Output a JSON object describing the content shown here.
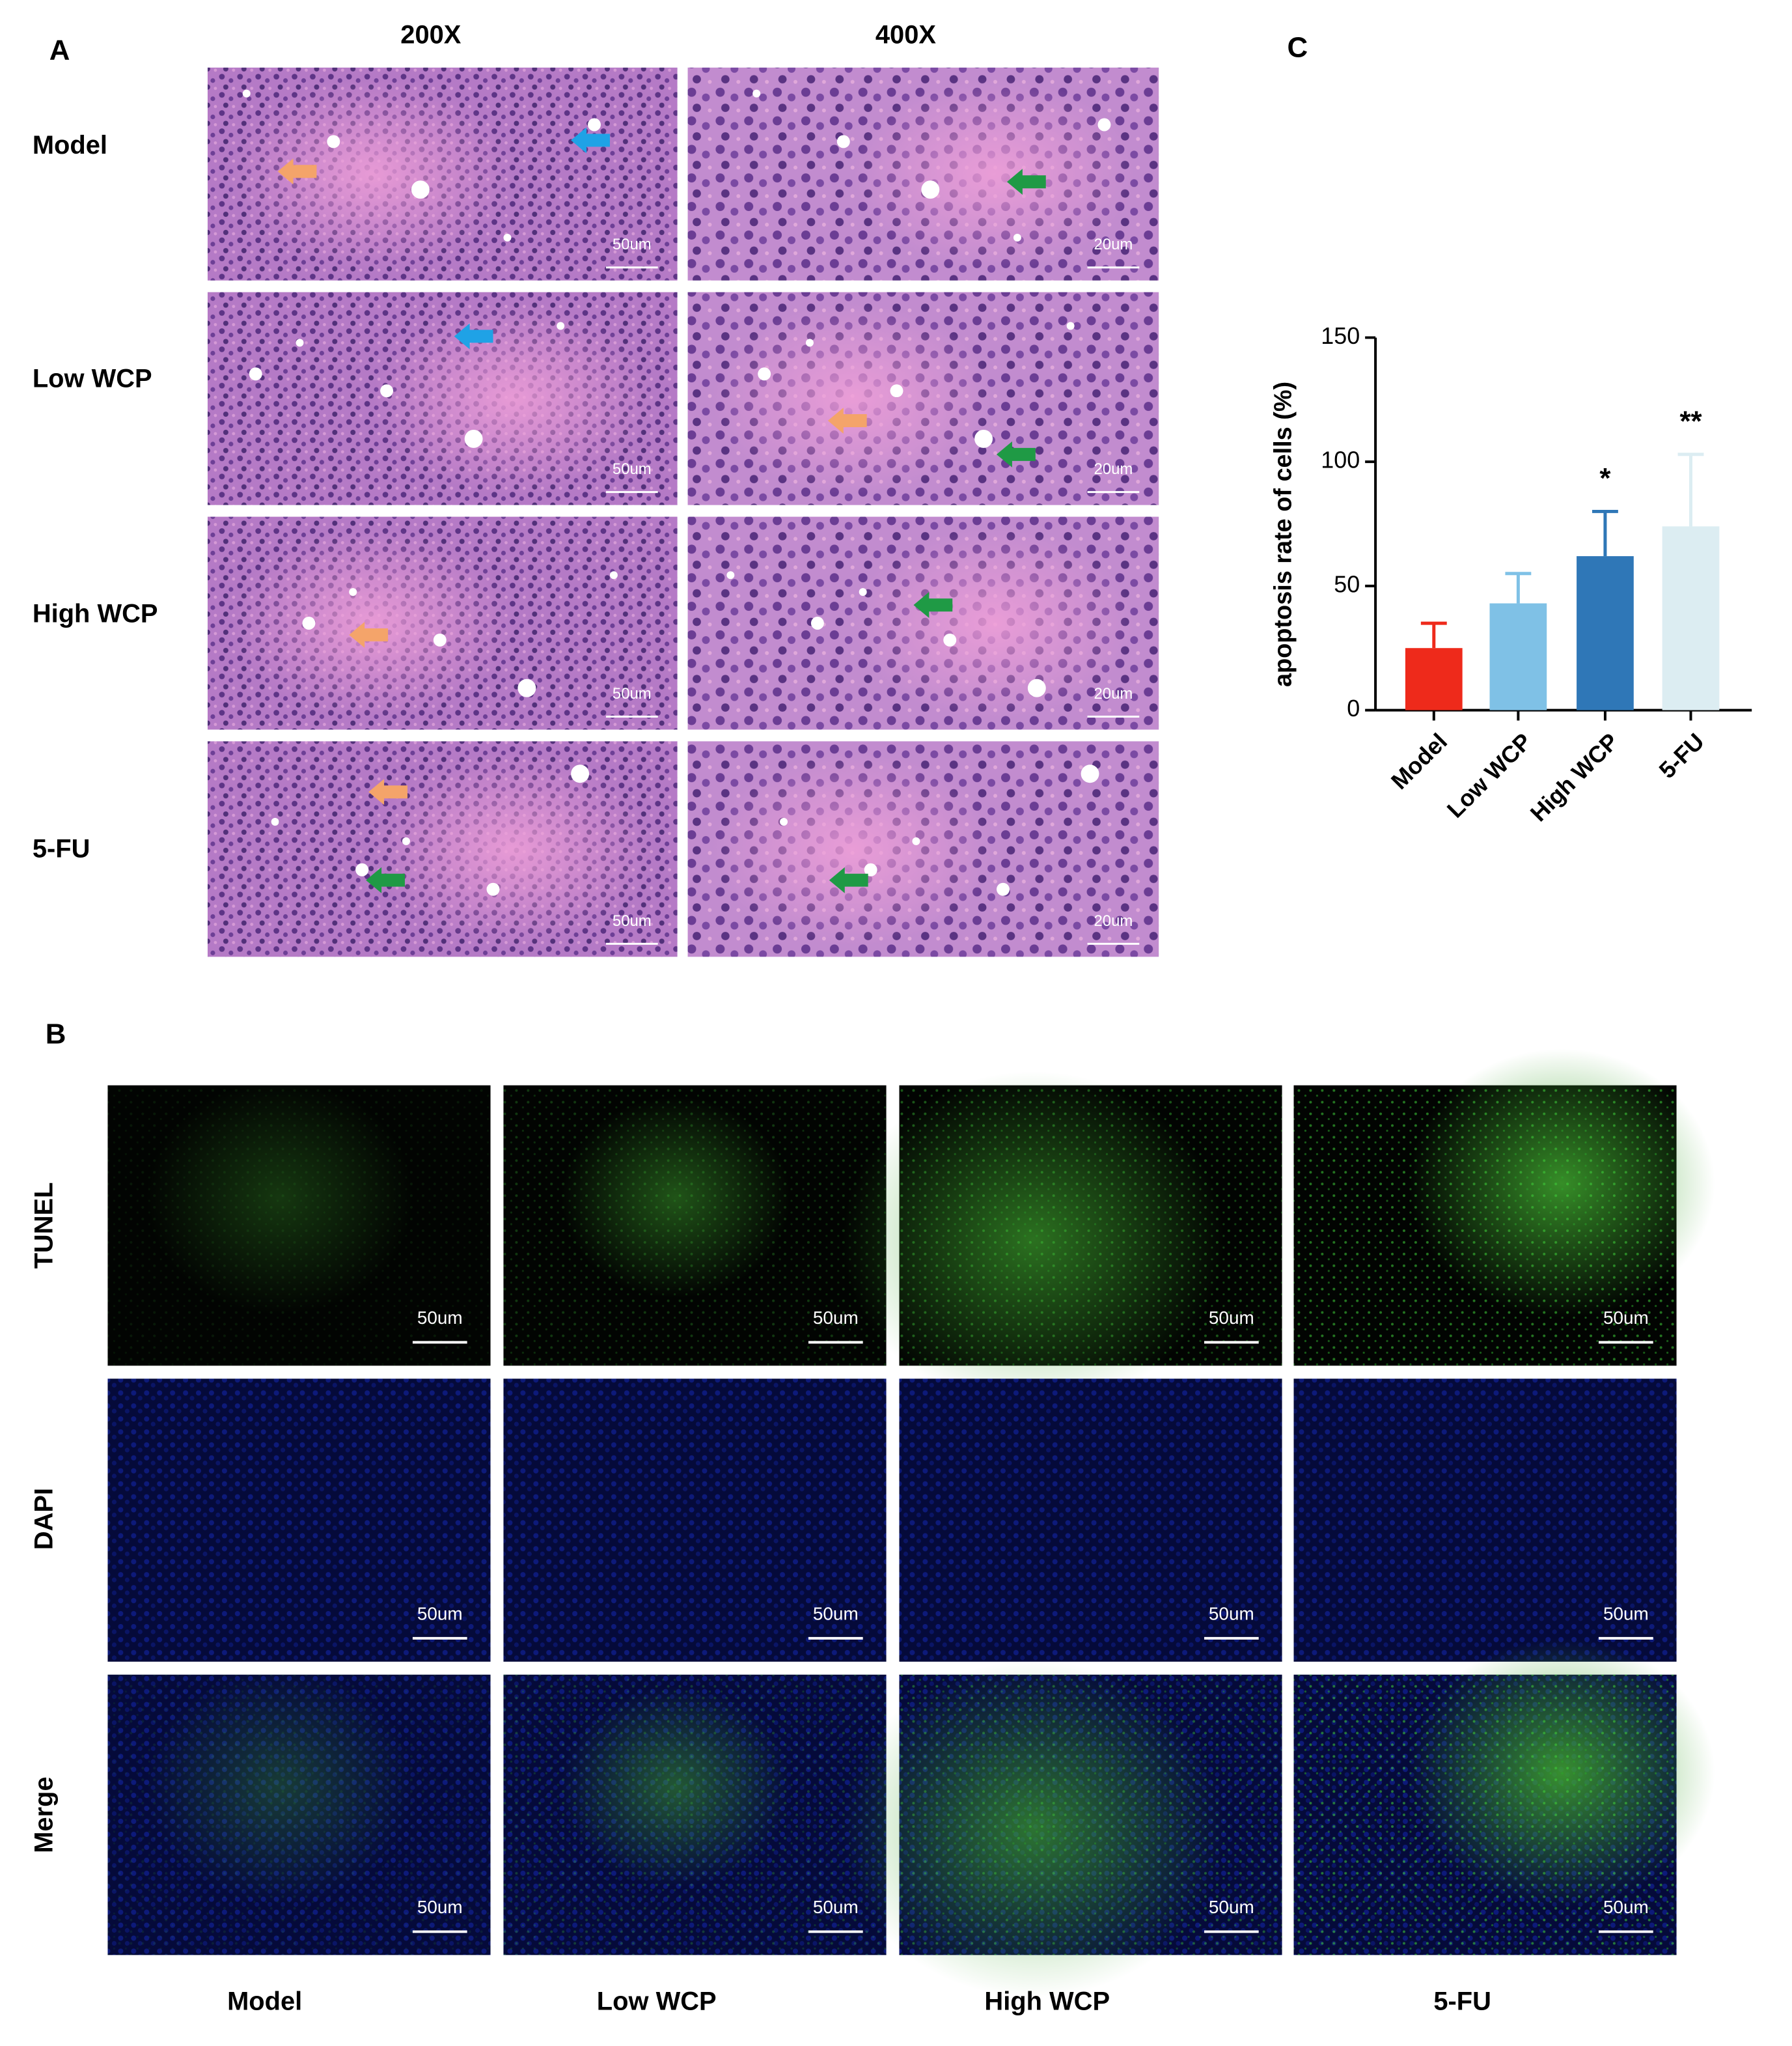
{
  "panel_labels": [
    "A",
    "B",
    "C"
  ],
  "he": {
    "columns": [
      "200X",
      "400X"
    ],
    "rows": [
      "Model",
      "Low WCP",
      "High WCP",
      "5-FU"
    ],
    "scale_labels": [
      "50um",
      "20um"
    ]
  },
  "fluorescence": {
    "rows": [
      "TUNEL",
      "DAPI",
      "Merge"
    ],
    "columns": [
      "Model",
      "Low WCP",
      "High WCP",
      "5-FU"
    ],
    "scale_label": "50um"
  },
  "chart_data": {
    "type": "bar",
    "categories": [
      "Model",
      "Low WCP",
      "High WCP",
      "5-FU"
    ],
    "values": [
      25,
      43,
      62,
      74
    ],
    "errors": [
      10,
      12,
      18,
      29
    ],
    "colors": [
      "#ee2a1b",
      "#7fc1e6",
      "#2f77b7",
      "#dcedf2"
    ],
    "annotations": [
      null,
      null,
      "*",
      "**"
    ],
    "ylabel": "apoptosis rate of cells (%)",
    "ylim": [
      0,
      150
    ],
    "yticks": [
      0,
      50,
      100,
      150
    ]
  }
}
